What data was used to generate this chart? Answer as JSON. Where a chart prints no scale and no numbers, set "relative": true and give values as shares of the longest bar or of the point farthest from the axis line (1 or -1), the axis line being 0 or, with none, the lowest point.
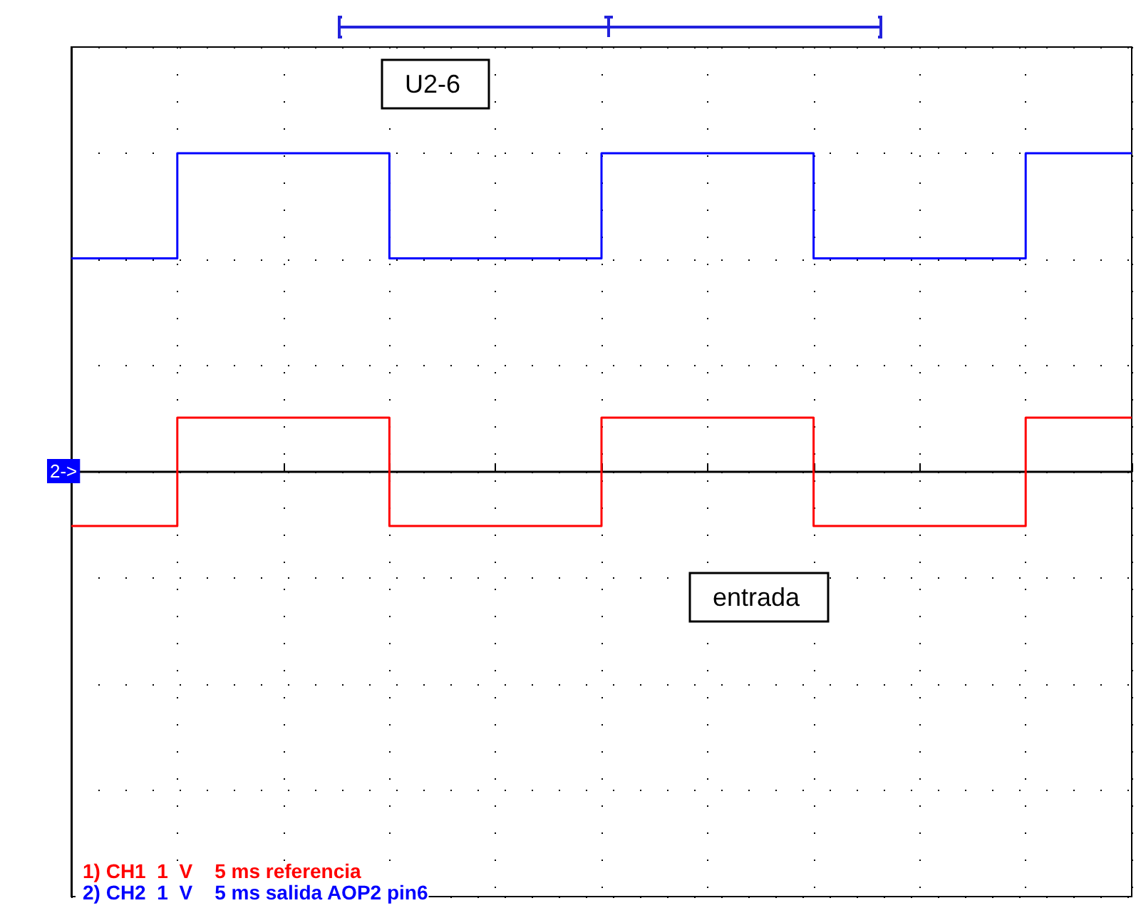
{
  "chart_data": {
    "type": "step",
    "relative": true,
    "categories": [
      null,
      null,
      null,
      null,
      null,
      null,
      null,
      null,
      null,
      null,
      null
    ],
    "series": [
      {
        "name": "1) CH1  1  V    5 ms referencia",
        "color": "#ff0000",
        "values": [
          -0.17,
          0.17,
          0.17,
          -0.17,
          -0.17,
          0.17,
          0.17,
          -0.17,
          -0.17,
          0.17,
          0.17
        ]
      },
      {
        "name": "2) CH2  1  V    5 ms salida AOP2 pin6",
        "color": "#0000ff",
        "values": [
          0.67,
          1,
          1,
          0.67,
          0.67,
          1,
          1,
          0.67,
          0.67,
          1,
          1
        ]
      }
    ],
    "annotations": [
      "U2-6",
      "entrada",
      {
        "text": "2->",
        "y": 0
      }
    ],
    "grid": true,
    "legend": "bottom left",
    "marker": "none",
    "line_style": "solid"
  }
}
